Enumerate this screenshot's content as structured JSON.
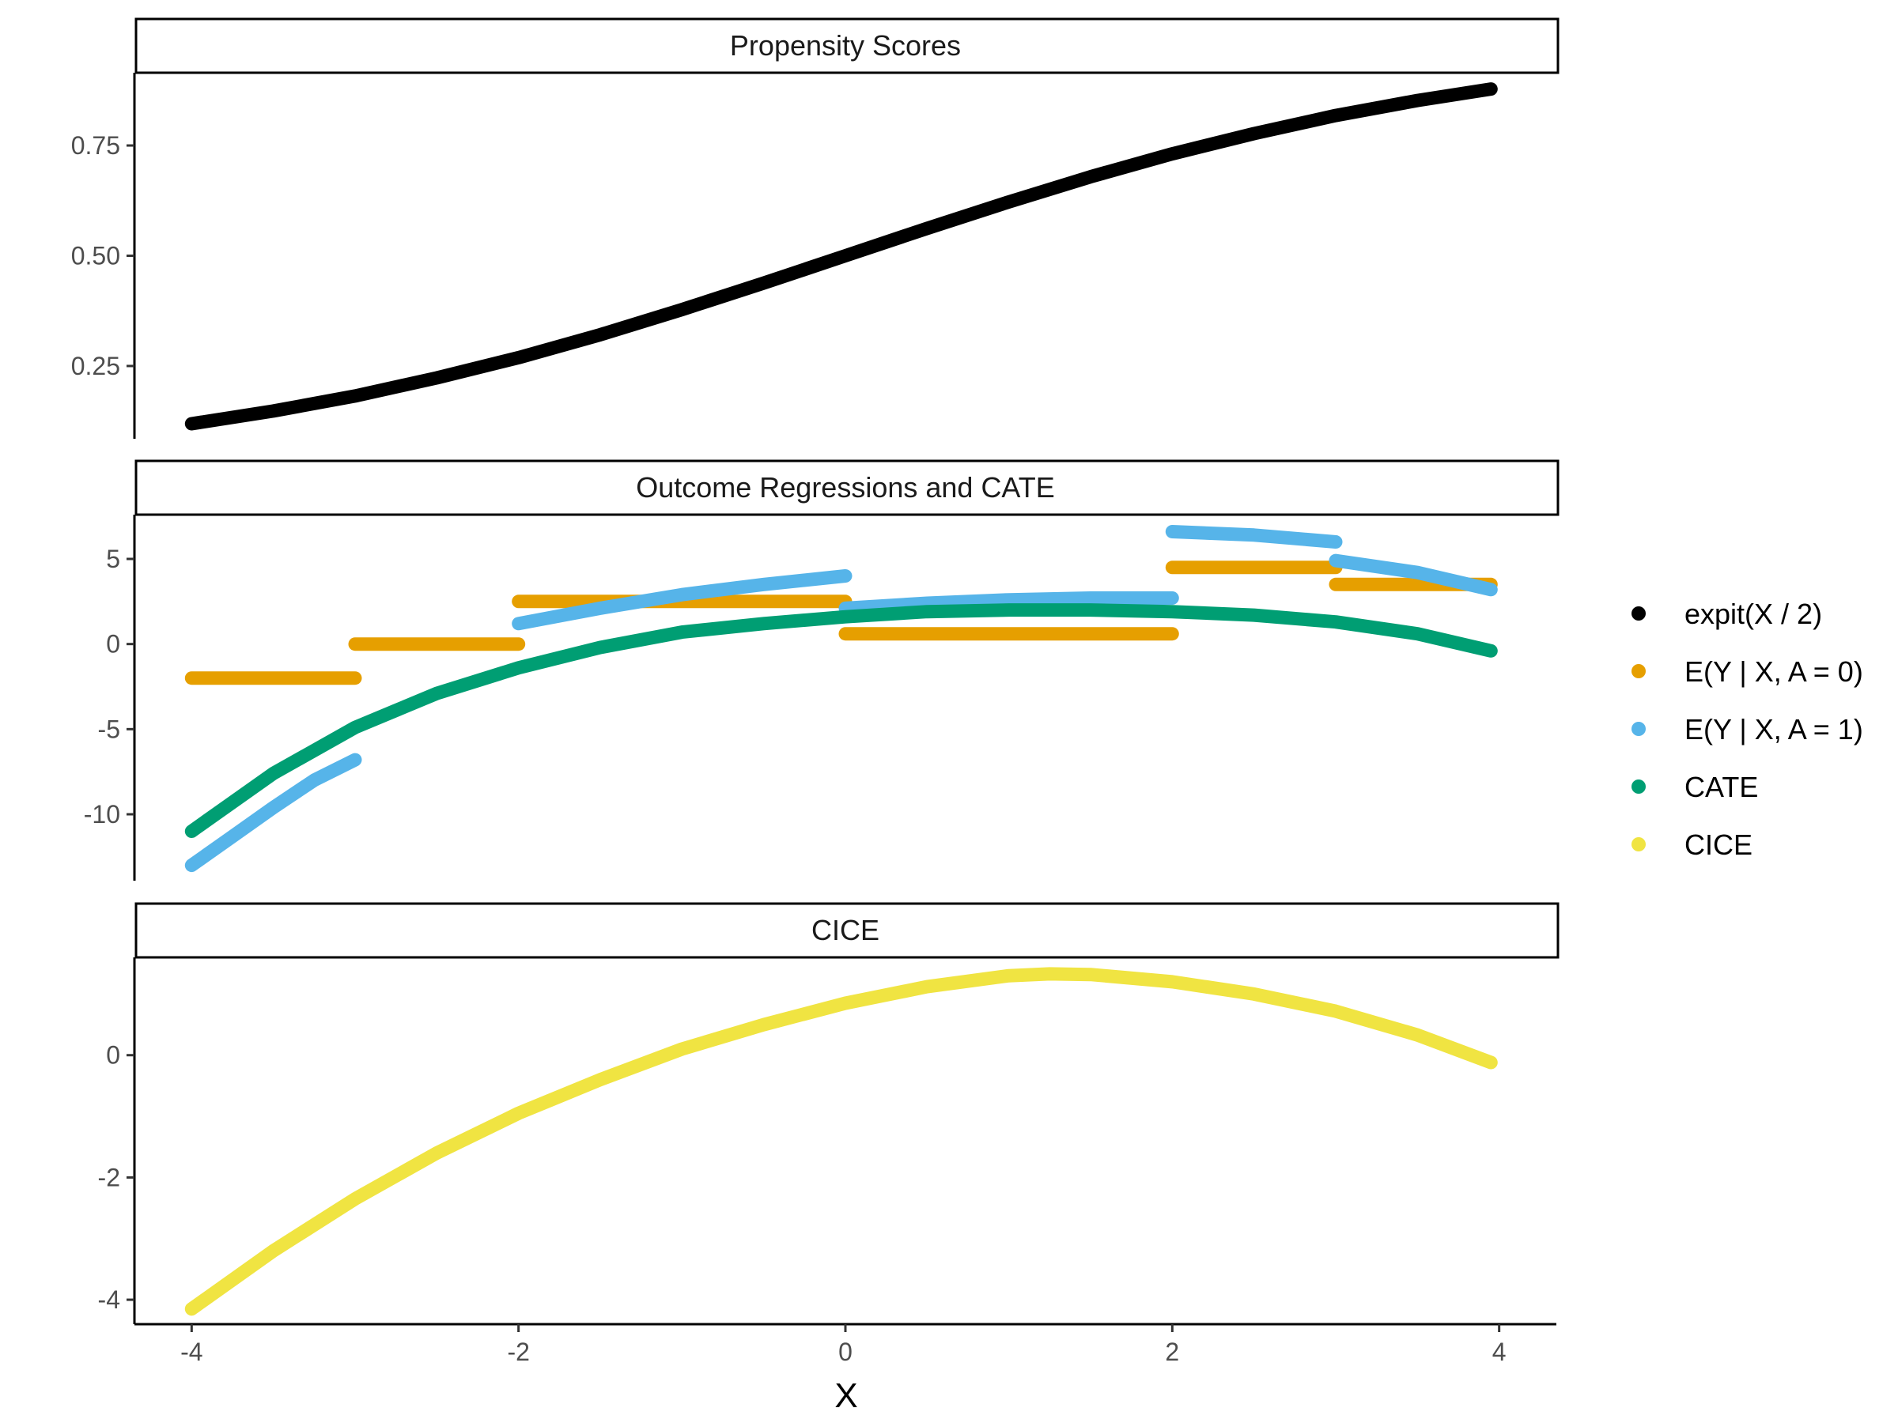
{
  "chart_data": {
    "type": "scatter",
    "xlabel": "X",
    "x_ticks": [
      -4,
      -2,
      0,
      2,
      4
    ],
    "xlim": [
      -4.35,
      4.35
    ],
    "colors": {
      "expit": "#000000",
      "mu0": "#E69F00",
      "mu1": "#56B4E9",
      "cate": "#009E73",
      "cice": "#F0E442"
    },
    "panels": [
      {
        "title": "Propensity Scores",
        "ylim": [
          0.085,
          0.915
        ],
        "y_ticks": [
          0.25,
          0.5,
          0.75
        ],
        "y_tick_labels": [
          "0.25",
          "0.50",
          "0.75"
        ],
        "series": [
          {
            "key": "expit",
            "segments": [
              {
                "x": [
                  -4,
                  -3.5,
                  -3,
                  -2.5,
                  -2,
                  -1.5,
                  -1,
                  -0.5,
                  0,
                  0.5,
                  1,
                  1.5,
                  2,
                  2.5,
                  3,
                  3.5,
                  3.95
                ],
                "y": [
                  0.119,
                  0.148,
                  0.182,
                  0.223,
                  0.269,
                  0.321,
                  0.378,
                  0.438,
                  0.5,
                  0.562,
                  0.622,
                  0.679,
                  0.731,
                  0.777,
                  0.818,
                  0.852,
                  0.878
                ]
              }
            ]
          }
        ]
      },
      {
        "title": "Outcome Regressions and CATE",
        "ylim": [
          -13.9,
          7.6
        ],
        "y_ticks": [
          -10,
          -5,
          0,
          5
        ],
        "y_tick_labels": [
          "-10",
          "-5",
          "0",
          "5"
        ],
        "series": [
          {
            "key": "mu0",
            "segments": [
              {
                "x": [
                  -4,
                  -3
                ],
                "y": [
                  -2,
                  -2
                ]
              },
              {
                "x": [
                  -3,
                  -2
                ],
                "y": [
                  0,
                  0
                ]
              },
              {
                "x": [
                  -2,
                  0
                ],
                "y": [
                  2.5,
                  2.5
                ]
              },
              {
                "x": [
                  0,
                  2
                ],
                "y": [
                  0.6,
                  0.6
                ]
              },
              {
                "x": [
                  2,
                  3
                ],
                "y": [
                  4.5,
                  4.5
                ]
              },
              {
                "x": [
                  3,
                  3.95
                ],
                "y": [
                  3.5,
                  3.5
                ]
              }
            ]
          },
          {
            "key": "mu1",
            "segments": [
              {
                "x": [
                  -4,
                  -3.75,
                  -3.5,
                  -3.25,
                  -3
                ],
                "y": [
                  -13,
                  -11.3,
                  -9.6,
                  -8.0,
                  -6.8
                ]
              },
              {
                "x": [
                  -2,
                  -1.5,
                  -1,
                  -0.5,
                  0
                ],
                "y": [
                  1.2,
                  2.1,
                  2.9,
                  3.5,
                  4.0
                ]
              },
              {
                "x": [
                  0,
                  0.5,
                  1,
                  1.5,
                  2
                ],
                "y": [
                  2.1,
                  2.4,
                  2.6,
                  2.7,
                  2.7
                ]
              },
              {
                "x": [
                  2,
                  2.5,
                  3
                ],
                "y": [
                  6.6,
                  6.4,
                  6.0
                ]
              },
              {
                "x": [
                  3,
                  3.5,
                  3.95
                ],
                "y": [
                  4.9,
                  4.2,
                  3.2
                ]
              }
            ]
          },
          {
            "key": "cate",
            "segments": [
              {
                "x": [
                  -4,
                  -3.5,
                  -3,
                  -2.5,
                  -2,
                  -1.5,
                  -1,
                  -0.5,
                  0,
                  0.5,
                  1,
                  1.5,
                  2,
                  2.5,
                  3,
                  3.5,
                  3.95
                ],
                "y": [
                  -11,
                  -7.6,
                  -4.9,
                  -2.9,
                  -1.4,
                  -0.2,
                  0.7,
                  1.2,
                  1.6,
                  1.9,
                  2.0,
                  2.0,
                  1.9,
                  1.7,
                  1.3,
                  0.6,
                  -0.4
                ]
              }
            ]
          }
        ]
      },
      {
        "title": "CICE",
        "ylim": [
          -4.4,
          1.6
        ],
        "y_ticks": [
          -4,
          -2,
          0
        ],
        "y_tick_labels": [
          "-4",
          "-2",
          "0"
        ],
        "series": [
          {
            "key": "cice",
            "segments": [
              {
                "x": [
                  -4,
                  -3.5,
                  -3,
                  -2.5,
                  -2,
                  -1.5,
                  -1,
                  -0.5,
                  0,
                  0.5,
                  1,
                  1.25,
                  1.5,
                  2,
                  2.5,
                  3,
                  3.5,
                  3.95
                ],
                "y": [
                  -4.15,
                  -3.2,
                  -2.35,
                  -1.6,
                  -0.95,
                  -0.4,
                  0.1,
                  0.5,
                  0.85,
                  1.12,
                  1.3,
                  1.33,
                  1.32,
                  1.2,
                  1.0,
                  0.72,
                  0.33,
                  -0.12
                ]
              }
            ]
          }
        ]
      }
    ],
    "legend": {
      "placement": "right",
      "items": [
        {
          "key": "expit",
          "label": "expit(X / 2)"
        },
        {
          "key": "mu0",
          "label": "E(Y | X, A = 0)"
        },
        {
          "key": "mu1",
          "label": "E(Y | X, A = 1)"
        },
        {
          "key": "cate",
          "label": "CATE"
        },
        {
          "key": "cice",
          "label": "CICE"
        }
      ]
    }
  }
}
